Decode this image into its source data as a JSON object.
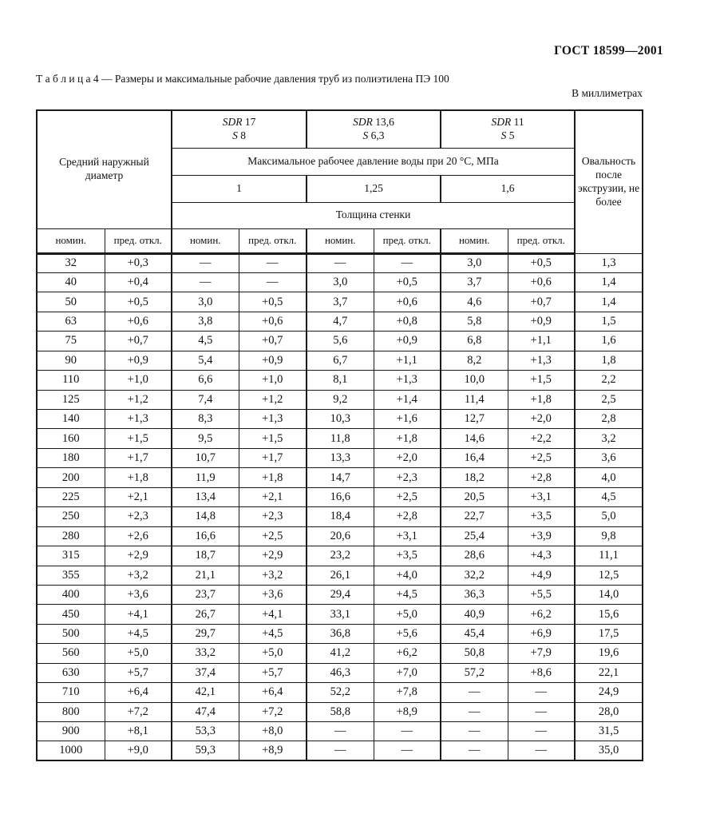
{
  "page": {
    "doc_ref": "ГОСТ 18599—2001",
    "units_note": "В миллиметрах"
  },
  "caption": {
    "label": "Т а б л и ц а  4",
    "dash": "—",
    "title": "Размеры и максимальные рабочие давления труб из полиэтилена ПЭ 100"
  },
  "table": {
    "header": {
      "diameter_title": "Средний наружный диаметр",
      "sdr_groups": [
        {
          "sdr_label": "SDR",
          "sdr_value": "17",
          "s_label": "S",
          "s_value": "8",
          "pressure": "1"
        },
        {
          "sdr_label": "SDR",
          "sdr_value": "13,6",
          "s_label": "S",
          "s_value": "6,3",
          "pressure": "1,25"
        },
        {
          "sdr_label": "SDR",
          "sdr_value": "11",
          "s_label": "S",
          "s_value": "5",
          "pressure": "1,6"
        }
      ],
      "pressure_title": "Максимальное рабочее давление воды при 20 °С, МПа",
      "wall_thickness_title": "Толщина стенки",
      "nominal_label": "номин.",
      "deviation_label": "пред. откл.",
      "ovality_title": "Овальность после экструзии, не более"
    },
    "rows": [
      [
        "32",
        "+0,3",
        "—",
        "—",
        "—",
        "—",
        "3,0",
        "+0,5",
        "1,3"
      ],
      [
        "40",
        "+0,4",
        "—",
        "—",
        "3,0",
        "+0,5",
        "3,7",
        "+0,6",
        "1,4"
      ],
      [
        "50",
        "+0,5",
        "3,0",
        "+0,5",
        "3,7",
        "+0,6",
        "4,6",
        "+0,7",
        "1,4"
      ],
      [
        "63",
        "+0,6",
        "3,8",
        "+0,6",
        "4,7",
        "+0,8",
        "5,8",
        "+0,9",
        "1,5"
      ],
      [
        "75",
        "+0,7",
        "4,5",
        "+0,7",
        "5,6",
        "+0,9",
        "6,8",
        "+1,1",
        "1,6"
      ],
      [
        "90",
        "+0,9",
        "5,4",
        "+0,9",
        "6,7",
        "+1,1",
        "8,2",
        "+1,3",
        "1,8"
      ],
      [
        "110",
        "+1,0",
        "6,6",
        "+1,0",
        "8,1",
        "+1,3",
        "10,0",
        "+1,5",
        "2,2"
      ],
      [
        "125",
        "+1,2",
        "7,4",
        "+1,2",
        "9,2",
        "+1,4",
        "11,4",
        "+1,8",
        "2,5"
      ],
      [
        "140",
        "+1,3",
        "8,3",
        "+1,3",
        "10,3",
        "+1,6",
        "12,7",
        "+2,0",
        "2,8"
      ],
      [
        "160",
        "+1,5",
        "9,5",
        "+1,5",
        "11,8",
        "+1,8",
        "14,6",
        "+2,2",
        "3,2"
      ],
      [
        "180",
        "+1,7",
        "10,7",
        "+1,7",
        "13,3",
        "+2,0",
        "16,4",
        "+2,5",
        "3,6"
      ],
      [
        "200",
        "+1,8",
        "11,9",
        "+1,8",
        "14,7",
        "+2,3",
        "18,2",
        "+2,8",
        "4,0"
      ],
      [
        "225",
        "+2,1",
        "13,4",
        "+2,1",
        "16,6",
        "+2,5",
        "20,5",
        "+3,1",
        "4,5"
      ],
      [
        "250",
        "+2,3",
        "14,8",
        "+2,3",
        "18,4",
        "+2,8",
        "22,7",
        "+3,5",
        "5,0"
      ],
      [
        "280",
        "+2,6",
        "16,6",
        "+2,5",
        "20,6",
        "+3,1",
        "25,4",
        "+3,9",
        "9,8"
      ],
      [
        "315",
        "+2,9",
        "18,7",
        "+2,9",
        "23,2",
        "+3,5",
        "28,6",
        "+4,3",
        "11,1"
      ],
      [
        "355",
        "+3,2",
        "21,1",
        "+3,2",
        "26,1",
        "+4,0",
        "32,2",
        "+4,9",
        "12,5"
      ],
      [
        "400",
        "+3,6",
        "23,7",
        "+3,6",
        "29,4",
        "+4,5",
        "36,3",
        "+5,5",
        "14,0"
      ],
      [
        "450",
        "+4,1",
        "26,7",
        "+4,1",
        "33,1",
        "+5,0",
        "40,9",
        "+6,2",
        "15,6"
      ],
      [
        "500",
        "+4,5",
        "29,7",
        "+4,5",
        "36,8",
        "+5,6",
        "45,4",
        "+6,9",
        "17,5"
      ],
      [
        "560",
        "+5,0",
        "33,2",
        "+5,0",
        "41,2",
        "+6,2",
        "50,8",
        "+7,9",
        "19,6"
      ],
      [
        "630",
        "+5,7",
        "37,4",
        "+5,7",
        "46,3",
        "+7,0",
        "57,2",
        "+8,6",
        "22,1"
      ],
      [
        "710",
        "+6,4",
        "42,1",
        "+6,4",
        "52,2",
        "+7,8",
        "—",
        "—",
        "24,9"
      ],
      [
        "800",
        "+7,2",
        "47,4",
        "+7,2",
        "58,8",
        "+8,9",
        "—",
        "—",
        "28,0"
      ],
      [
        "900",
        "+8,1",
        "53,3",
        "+8,0",
        "—",
        "—",
        "—",
        "—",
        "31,5"
      ],
      [
        "1000",
        "+9,0",
        "59,3",
        "+8,9",
        "—",
        "—",
        "—",
        "—",
        "35,0"
      ]
    ]
  }
}
